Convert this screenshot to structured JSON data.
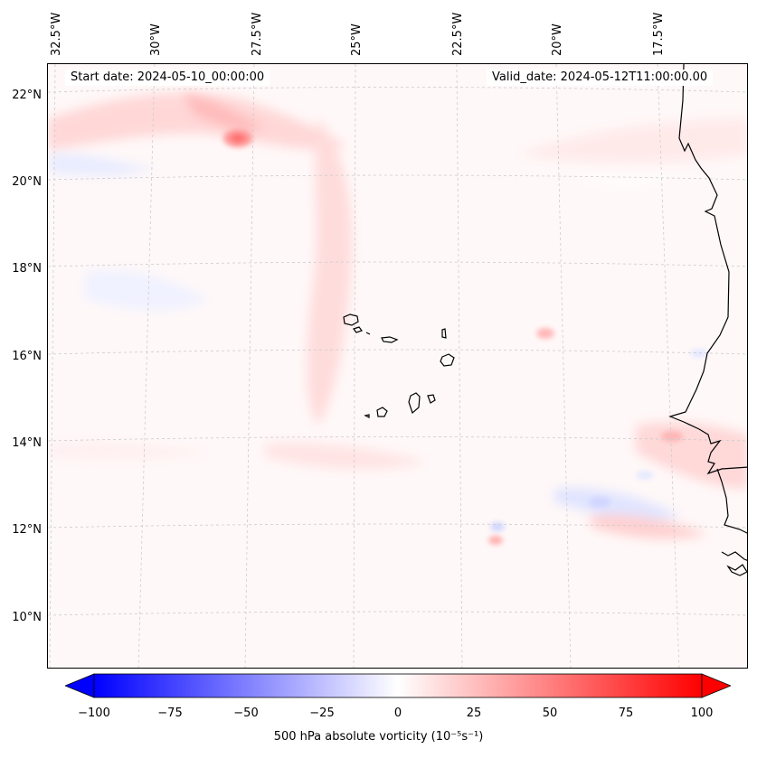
{
  "header": {
    "start_date": "Start date: 2024-05-10_00:00:00",
    "valid_date": "Valid_date: 2024-05-12T11:00:00.00"
  },
  "axes": {
    "lon_labels": [
      "32.5°W",
      "30°W",
      "27.5°W",
      "25°W",
      "22.5°W",
      "20°W",
      "17.5°W"
    ],
    "lat_labels": [
      "22°N",
      "20°N",
      "18°N",
      "16°N",
      "14°N",
      "12°N",
      "10°N"
    ]
  },
  "colorbar": {
    "ticks": [
      "−100",
      "−75",
      "−50",
      "−25",
      "0",
      "25",
      "50",
      "75",
      "100"
    ],
    "title": "500 hPa absolute vorticity (10⁻⁵s⁻¹)",
    "colors": {
      "min": "#0000ff",
      "mid": "#ffffff",
      "max": "#ff0000"
    },
    "range": [
      -100,
      100
    ]
  },
  "map": {
    "background_color": "#fff8f8",
    "coastline_color": "#000000",
    "gridline_color": "#cccccc",
    "features": [
      "Cape Verde islands",
      "West African coastline"
    ]
  }
}
